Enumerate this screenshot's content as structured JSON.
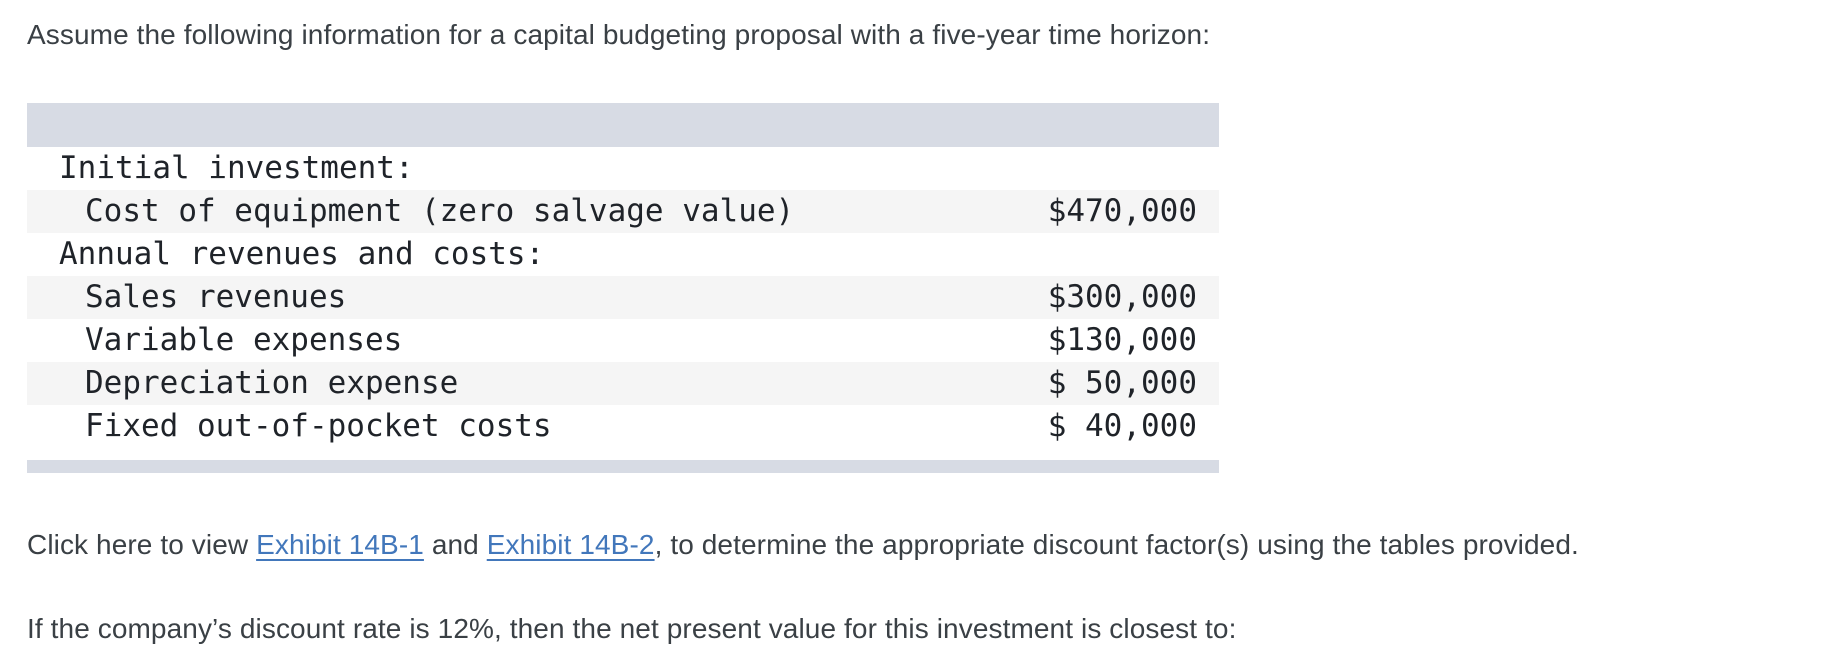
{
  "page": {
    "intro": "Assume the following information for a capital budgeting proposal with a five-year time horizon:",
    "closing_question": "If the company’s discount rate is 12%, then the net present value for this investment is closest to:"
  },
  "exhibit_line": {
    "prefix": "Click here to view ",
    "link1": "Exhibit 14B-1",
    "middle": " and ",
    "link2": "Exhibit 14B-2",
    "suffix": ", to determine the appropriate discount factor(s) using the tables provided."
  },
  "table": {
    "rows": [
      {
        "label": "Initial investment:",
        "value": "",
        "shaded": false
      },
      {
        "label": "Cost of equipment (zero salvage value)",
        "value": "$470,000",
        "shaded": true
      },
      {
        "label": "Annual revenues and costs:",
        "value": "",
        "shaded": false
      },
      {
        "label": "Sales revenues",
        "value": "$300,000",
        "shaded": true
      },
      {
        "label": "Variable expenses",
        "value": "$130,000",
        "shaded": false
      },
      {
        "label": "Depreciation expense",
        "value": "$ 50,000",
        "shaded": true
      },
      {
        "label": "Fixed out-of-pocket costs",
        "value": "$ 40,000",
        "shaded": false
      }
    ]
  },
  "colors": {
    "band": "#d7dbe4",
    "row_stripe": "#f5f5f5",
    "table_text": "#1f2329",
    "body_text": "#3a4045",
    "link": "#4277bb",
    "background": "#ffffff"
  }
}
